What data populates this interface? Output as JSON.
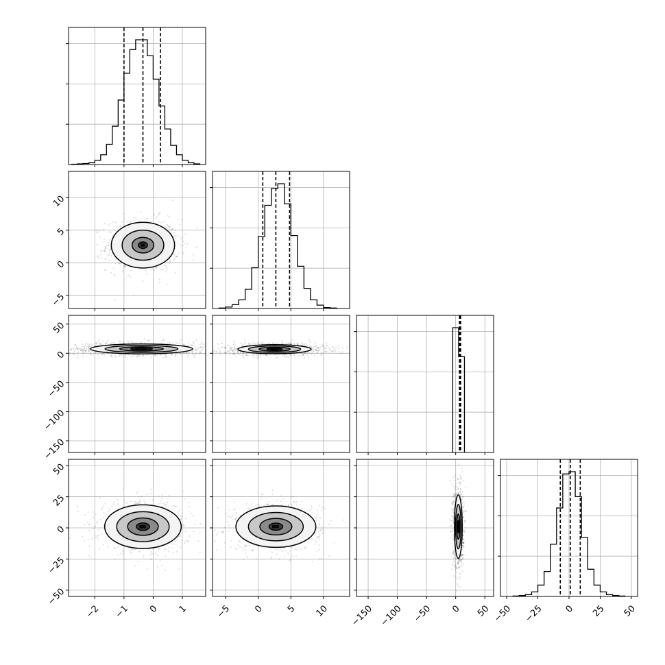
{
  "chart_data": {
    "type": "corner",
    "grid": true,
    "colors": {
      "ink": "#000000",
      "grid": "#b0b0b0",
      "fill_levels": [
        "#f4f4f4",
        "#c8c8c8",
        "#8a8a8a",
        "#3a3a3a",
        "#000000"
      ]
    },
    "params": [
      {
        "range": [
          -2.9,
          1.8
        ],
        "ticks": [
          -2,
          -1,
          0,
          1
        ],
        "tick_labels": [
          "−2",
          "−1",
          "0",
          "1"
        ],
        "quantiles": [
          -1.0,
          -0.35,
          0.25
        ],
        "center": -0.3,
        "sigma": 0.6
      },
      {
        "range": [
          -7.0,
          14.0
        ],
        "ticks": [
          -5,
          0,
          5,
          10
        ],
        "tick_labels": [
          "−5",
          "0",
          "5",
          "10"
        ],
        "quantiles": [
          0.7,
          2.7,
          4.8
        ],
        "center": 2.7,
        "sigma": 2.0
      },
      {
        "range": [
          -170,
          65
        ],
        "ticks": [
          -150,
          -100,
          -50,
          0,
          50
        ],
        "tick_labels": [
          "−150",
          "−100",
          "−50",
          "0",
          "50"
        ],
        "quantiles": [
          6.5,
          7.5,
          8.5
        ],
        "center": 7.0,
        "sigma": 5.0
      },
      {
        "range": [
          -55,
          55
        ],
        "ticks": [
          -50,
          -25,
          0,
          25,
          50
        ],
        "tick_labels": [
          "−50",
          "−25",
          "0",
          "25",
          "50"
        ],
        "quantiles": [
          -7,
          1,
          9
        ],
        "center": 1,
        "sigma": 8.5
      }
    ],
    "histograms": [
      {
        "param": 0,
        "bins": [
          -2.8,
          -2.6,
          -2.4,
          -2.2,
          -2.0,
          -1.8,
          -1.6,
          -1.4,
          -1.2,
          -1.0,
          -0.8,
          -0.6,
          -0.4,
          -0.2,
          0.0,
          0.2,
          0.4,
          0.6,
          0.8,
          1.0,
          1.2,
          1.4,
          1.6
        ],
        "counts": [
          1,
          2,
          3,
          5,
          12,
          28,
          58,
          110,
          185,
          262,
          330,
          358,
          358,
          312,
          245,
          168,
          102,
          55,
          28,
          12,
          5,
          2
        ]
      },
      {
        "param": 1,
        "bins": [
          -6,
          -5,
          -4,
          -3,
          -2,
          -1,
          0,
          1,
          2,
          3,
          4,
          5,
          6,
          7,
          8,
          9,
          10,
          11,
          12
        ],
        "counts": [
          1,
          3,
          8,
          18,
          40,
          85,
          150,
          215,
          250,
          260,
          218,
          152,
          88,
          42,
          18,
          7,
          2,
          1
        ]
      },
      {
        "param": 2,
        "bins": [
          -5,
          5,
          15
        ],
        "counts": [
          430,
          330
        ]
      },
      {
        "param": 3,
        "bins": [
          -45,
          -40,
          -35,
          -30,
          -25,
          -20,
          -15,
          -10,
          -5,
          0,
          5,
          10,
          15,
          20,
          25,
          30,
          35,
          40,
          45
        ],
        "counts": [
          1,
          2,
          4,
          10,
          25,
          55,
          115,
          195,
          270,
          275,
          220,
          130,
          60,
          25,
          10,
          4,
          2,
          1
        ]
      }
    ],
    "pairs": [
      {
        "row": 1,
        "col": 0,
        "center": [
          -0.35,
          2.7
        ],
        "sigma": [
          0.62,
          2.0
        ],
        "levels": [
          0.25,
          0.6,
          1.15,
          1.75
        ]
      },
      {
        "row": 2,
        "col": 0,
        "center": [
          -0.4,
          7.5
        ],
        "sigma": [
          1.25,
          6.0
        ],
        "levels": [
          0.3,
          0.6,
          1.0,
          1.4
        ]
      },
      {
        "row": 2,
        "col": 1,
        "center": [
          2.5,
          7.0
        ],
        "sigma": [
          4.0,
          5.5
        ],
        "levels": [
          0.3,
          0.6,
          1.0,
          1.4
        ]
      },
      {
        "row": 3,
        "col": 0,
        "center": [
          -0.35,
          1.0
        ],
        "sigma": [
          0.75,
          10.0
        ],
        "levels": [
          0.3,
          0.7,
          1.2,
          1.75
        ]
      },
      {
        "row": 3,
        "col": 1,
        "center": [
          2.7,
          1.0
        ],
        "sigma": [
          3.5,
          9.5
        ],
        "levels": [
          0.3,
          0.7,
          1.2,
          1.75
        ]
      },
      {
        "row": 3,
        "col": 2,
        "center": [
          4.5,
          1.0
        ],
        "sigma": [
          4.5,
          17.0
        ],
        "levels": [
          0.3,
          0.6,
          1.05,
          1.5
        ]
      }
    ]
  }
}
